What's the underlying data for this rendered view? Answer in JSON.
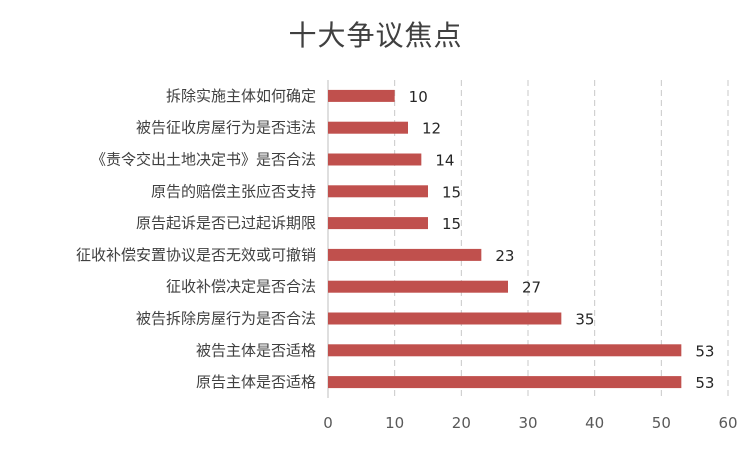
{
  "chart_data": {
    "type": "bar",
    "orientation": "horizontal",
    "title": "十大争议焦点",
    "xlabel": "",
    "ylabel": "",
    "categories": [
      "拆除实施主体如何确定",
      "被告征收房屋行为是否违法",
      "《责令交出土地决定书》是否合法",
      "原告的赔偿主张应否支持",
      "原告起诉是否已过起诉期限",
      "征收补偿安置协议是否无效或可撤销",
      "征收补偿决定是否合法",
      "被告拆除房屋行为是否合法",
      "被告主体是否适格",
      "原告主体是否适格"
    ],
    "values": [
      10,
      12,
      14,
      15,
      15,
      23,
      27,
      35,
      53,
      53
    ],
    "xlim": [
      0,
      60
    ],
    "xticks": [
      "0",
      "10",
      "20",
      "30",
      "40",
      "50",
      "60"
    ],
    "grid": "vertical-dashed",
    "bar_color": "#C0504D",
    "data_labels": true
  }
}
